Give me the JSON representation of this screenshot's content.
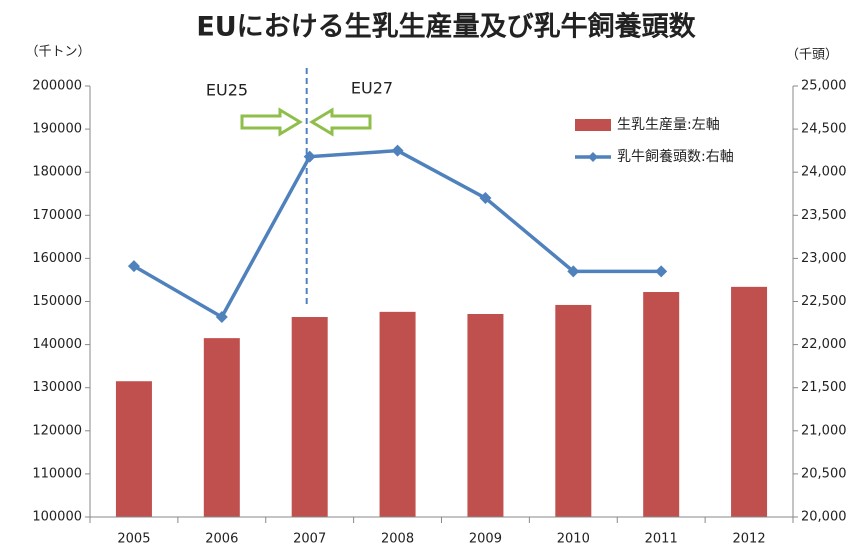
{
  "chart_data": {
    "type": "bar_line",
    "title": "EUにおける生乳生産量及び乳牛飼養頭数",
    "y_label": "（千トン）",
    "y2_label": "（千頭）",
    "categories": [
      "2005",
      "2006",
      "2007",
      "2008",
      "2009",
      "2010",
      "2011",
      "2012"
    ],
    "series": [
      {
        "name": "生乳生産量:左軸",
        "type": "bar",
        "color": "#c0504d",
        "values": [
          131500,
          141500,
          146400,
          147600,
          147100,
          149200,
          152200,
          153400
        ]
      },
      {
        "name": "乳牛飼養頭数:右軸",
        "type": "line",
        "axis": "y2",
        "color": "#4f81bd",
        "values": [
          22910,
          22320,
          24180,
          24250,
          23700,
          22850,
          22850,
          null
        ]
      }
    ],
    "ylim": [
      100000,
      200000
    ],
    "yticks": [
      100000,
      110000,
      120000,
      130000,
      140000,
      150000,
      160000,
      170000,
      180000,
      190000,
      200000
    ],
    "y2lim": [
      20000,
      25000
    ],
    "y2ticks": [
      {
        "value": 20000,
        "label": "20,000"
      },
      {
        "value": 20500,
        "label": "20,500"
      },
      {
        "value": 21000,
        "label": "21,000"
      },
      {
        "value": 21500,
        "label": "21,500"
      },
      {
        "value": 22000,
        "label": "22,000"
      },
      {
        "value": 22500,
        "label": "22,500"
      },
      {
        "value": 23000,
        "label": "23,000"
      },
      {
        "value": 23500,
        "label": "23,500"
      },
      {
        "value": 24000,
        "label": "24,000"
      },
      {
        "value": 24500,
        "label": "24,500"
      },
      {
        "value": 25000,
        "label": "25,000"
      }
    ],
    "annotations": [
      "EU25",
      "EU27"
    ],
    "grid": false
  }
}
